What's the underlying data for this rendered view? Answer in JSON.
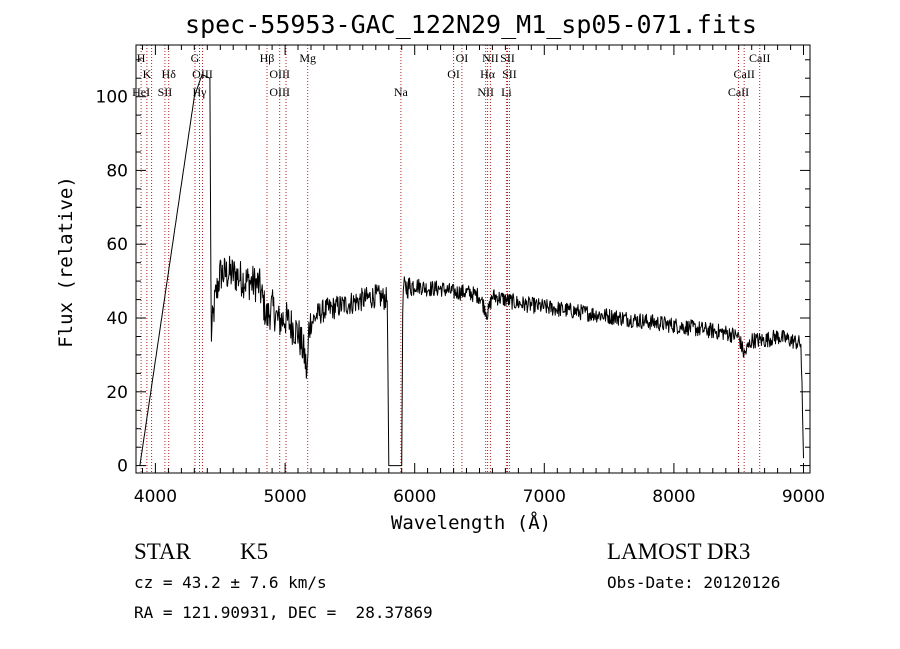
{
  "colors": {
    "spectrum": "#000000",
    "line_marker": "#b22222",
    "background": "#ffffff"
  },
  "chart_data": {
    "type": "line",
    "title": "spec-55953-GAC_122N29_M1_sp05-071.fits",
    "xlabel": "Wavelength (Å)",
    "ylabel": "Flux (relative)",
    "xlim": [
      3850,
      9050
    ],
    "ylim": [
      -2,
      114
    ],
    "xticks": [
      4000,
      5000,
      6000,
      7000,
      8000,
      9000
    ],
    "yticks": [
      0,
      20,
      40,
      60,
      80,
      100
    ],
    "spectrum_anchors": [
      [
        3880,
        0
      ],
      [
        4300,
        100
      ],
      [
        4360,
        106
      ],
      [
        4420,
        105
      ],
      [
        4430,
        35
      ],
      [
        4460,
        45
      ],
      [
        4500,
        52
      ],
      [
        4600,
        52
      ],
      [
        4700,
        50
      ],
      [
        4800,
        49
      ],
      [
        4860,
        40
      ],
      [
        4900,
        43
      ],
      [
        4950,
        39
      ],
      [
        5000,
        40
      ],
      [
        5100,
        36
      ],
      [
        5150,
        30
      ],
      [
        5170,
        24
      ],
      [
        5185,
        38
      ],
      [
        5250,
        41
      ],
      [
        5300,
        42
      ],
      [
        5400,
        43
      ],
      [
        5500,
        44
      ],
      [
        5600,
        45
      ],
      [
        5700,
        46
      ],
      [
        5790,
        45
      ],
      [
        5800,
        0
      ],
      [
        5900,
        0
      ],
      [
        5910,
        48
      ],
      [
        6000,
        49
      ],
      [
        6100,
        48
      ],
      [
        6200,
        48
      ],
      [
        6300,
        47
      ],
      [
        6400,
        47
      ],
      [
        6500,
        46
      ],
      [
        6563,
        41
      ],
      [
        6600,
        46
      ],
      [
        6700,
        45
      ],
      [
        6800,
        44
      ],
      [
        7000,
        43
      ],
      [
        7200,
        42
      ],
      [
        7400,
        41
      ],
      [
        7600,
        40
      ],
      [
        7800,
        39
      ],
      [
        8000,
        38
      ],
      [
        8200,
        37
      ],
      [
        8400,
        36
      ],
      [
        8500,
        35
      ],
      [
        8542,
        30
      ],
      [
        8600,
        34
      ],
      [
        8700,
        34
      ],
      [
        8800,
        35
      ],
      [
        8900,
        34
      ],
      [
        8980,
        33
      ],
      [
        9000,
        2
      ]
    ],
    "spectral_lines": [
      {
        "label": "H",
        "wavelength": 3889,
        "row": 0
      },
      {
        "label": "K",
        "wavelength": 3934,
        "row": 1
      },
      {
        "label": "HeI",
        "wavelength": 3889,
        "row": 2
      },
      {
        "label": "SII",
        "wavelength": 4073,
        "row": 2
      },
      {
        "label": "Hδ",
        "wavelength": 4102,
        "row": 1
      },
      {
        "label": "G",
        "wavelength": 4305,
        "row": 0
      },
      {
        "label": "OIII",
        "wavelength": 4363,
        "row": 1
      },
      {
        "label": "Hγ",
        "wavelength": 4340,
        "row": 2
      },
      {
        "label": "Hβ",
        "wavelength": 4861,
        "row": 0
      },
      {
        "label": "OIII",
        "wavelength": 4959,
        "row": 1
      },
      {
        "label": "OIII",
        "wavelength": 4959,
        "row": 2
      },
      {
        "label": "Mg",
        "wavelength": 5175,
        "row": 0
      },
      {
        "label": "Na",
        "wavelength": 5894,
        "row": 2
      },
      {
        "label": "OI",
        "wavelength": 6364,
        "row": 0
      },
      {
        "label": "OI",
        "wavelength": 6300,
        "row": 1
      },
      {
        "label": "NII",
        "wavelength": 6584,
        "row": 0
      },
      {
        "label": "SII",
        "wavelength": 6716,
        "row": 0
      },
      {
        "label": "Hα",
        "wavelength": 6563,
        "row": 1
      },
      {
        "label": "SII",
        "wavelength": 6731,
        "row": 1
      },
      {
        "label": "NII",
        "wavelength": 6548,
        "row": 2
      },
      {
        "label": "Li",
        "wavelength": 6708,
        "row": 2
      },
      {
        "label": "CaII",
        "wavelength": 8662,
        "row": 0
      },
      {
        "label": "CaII",
        "wavelength": 8542,
        "row": 1
      },
      {
        "label": "CaII",
        "wavelength": 8498,
        "row": 2
      }
    ],
    "marker_wavelengths": [
      3889,
      3934,
      3970,
      4073,
      4102,
      4305,
      4340,
      4363,
      4861,
      4959,
      5007,
      5175,
      5894,
      6300,
      6364,
      6548,
      6563,
      6584,
      6708,
      6716,
      6731,
      8498,
      8542,
      8662
    ]
  },
  "info": {
    "object_class": "STAR",
    "subclass": "K5",
    "redshift_line": "cz = 43.2 ± 7.6 km/s",
    "coords_line": "RA = 121.90931, DEC =  28.37869",
    "survey": "LAMOST DR3",
    "obs_date": "Obs-Date: 20120126"
  }
}
